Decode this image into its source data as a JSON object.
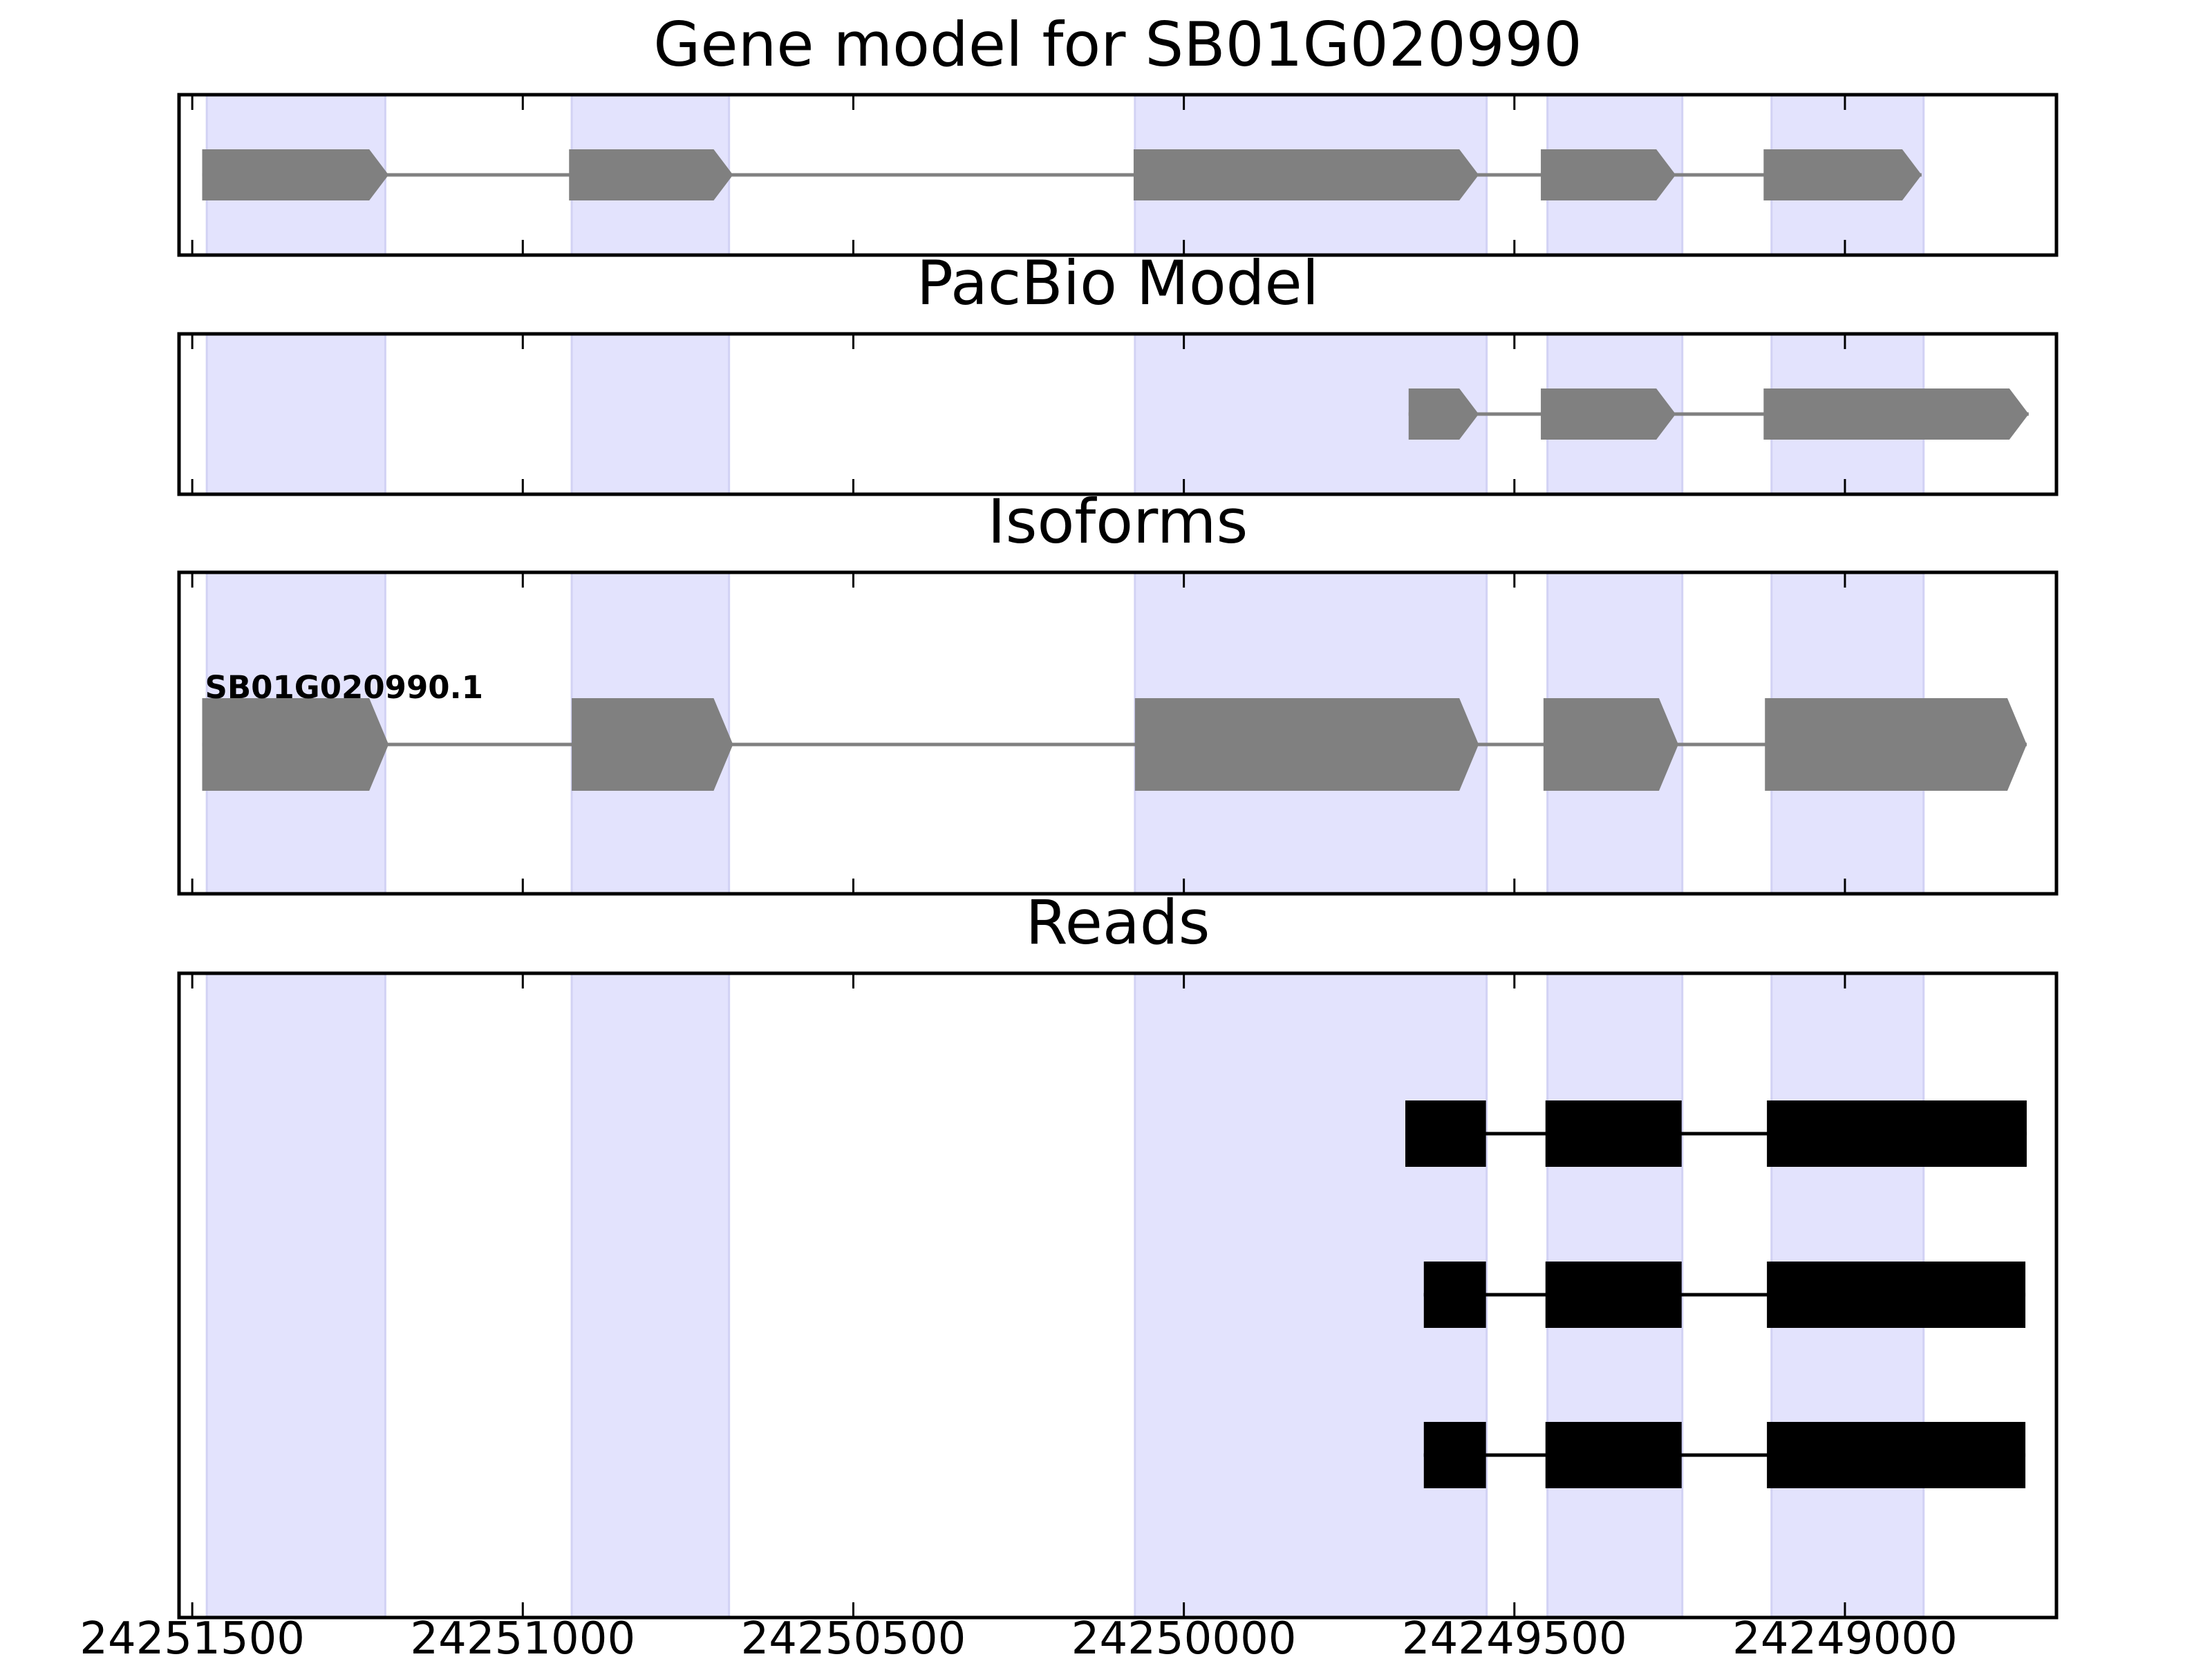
{
  "chart_data": {
    "type": "gene-track",
    "x_axis": {
      "reversed": true,
      "range": [
        24251520,
        24248680
      ],
      "ticks": [
        24251500,
        24251000,
        24250500,
        24250000,
        24249500,
        24249000
      ],
      "tick_labels": [
        "24251500",
        "24251000",
        "24250500",
        "24250000",
        "24249500",
        "24249000"
      ]
    },
    "shaded_exons": [
      [
        24251478,
        24251208
      ],
      [
        24250926,
        24250688
      ],
      [
        24250074,
        24249542
      ],
      [
        24249450,
        24249246
      ],
      [
        24249111,
        24248881
      ]
    ],
    "colors": {
      "shade": "#e3e3fd",
      "shade_edge": "#d2d2f4",
      "model": "#808080",
      "read": "#000000"
    },
    "panels": [
      {
        "title": "Gene model for SB01G020990",
        "kind": "gene_model",
        "features": [
          {
            "strand": "-",
            "exons": [
              [
                24251485,
                24251203
              ],
              [
                24250930,
                24250682
              ],
              [
                24250076,
                24249554
              ],
              [
                24249460,
                24249256
              ],
              [
                24249123,
                24248884
              ]
            ]
          }
        ]
      },
      {
        "title": "PacBio Model",
        "kind": "pacbio",
        "features": [
          {
            "strand": "-",
            "exons": [
              [
                24249660,
                24249554
              ],
              [
                24249460,
                24249256
              ],
              [
                24249123,
                24248722
              ]
            ]
          }
        ]
      },
      {
        "title": "Isoforms",
        "kind": "isoforms",
        "features": [
          {
            "name": "SB01G020990.1",
            "strand": "-",
            "exons": [
              [
                24251485,
                24251203
              ],
              [
                24250926,
                24250682
              ],
              [
                24250074,
                24249554
              ],
              [
                24249456,
                24249252
              ],
              [
                24249121,
                24248725
              ]
            ]
          }
        ]
      },
      {
        "title": "Reads",
        "kind": "reads",
        "features": [
          {
            "exons": [
              [
                24249665,
                24249543
              ],
              [
                24249453,
                24249247
              ],
              [
                24249118,
                24248725
              ]
            ]
          },
          {
            "exons": [
              [
                24249637,
                24249543
              ],
              [
                24249453,
                24249247
              ],
              [
                24249118,
                24248727
              ]
            ]
          },
          {
            "exons": [
              [
                24249637,
                24249543
              ],
              [
                24249453,
                24249247
              ],
              [
                24249118,
                24248727
              ]
            ]
          }
        ]
      }
    ]
  }
}
